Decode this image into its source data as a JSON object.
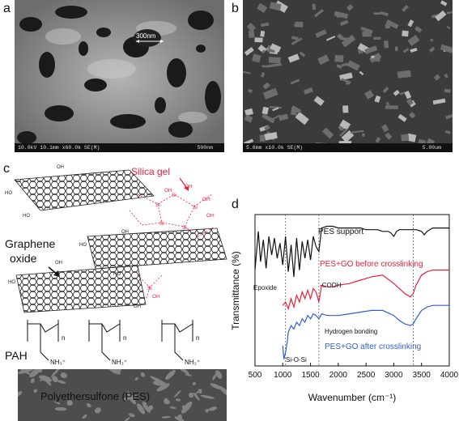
{
  "panels": {
    "a": {
      "label": "a",
      "scale_annotation": "300nm",
      "info_text": "10.0kV 10.1mm x60.0k SE(M)",
      "scale_bar": "500nm"
    },
    "b": {
      "label": "b",
      "info_text": "5.8mm x10.0k SE(M)",
      "scale_bar": "5.00um"
    },
    "c": {
      "label": "c",
      "silica_gel": "Silica gel",
      "graphene_oxide_line1": "Graphene",
      "graphene_oxide_line2": "oxide",
      "pah": "PAH",
      "pes": "Polyethersulfone (PES)",
      "n": "n",
      "nh3": "NH₃⁺",
      "si": "Si",
      "oh": "OH",
      "o": "O",
      "cooh": "OH",
      "ho": "HO"
    },
    "d": {
      "label": "d"
    }
  },
  "chart_data": {
    "type": "line",
    "xlabel": "Wavenumber (cm⁻¹)",
    "ylabel": "Transmittance (%)",
    "xlim": [
      500,
      4000
    ],
    "xticks": [
      500,
      1000,
      1500,
      2000,
      2500,
      3000,
      3500,
      4000
    ],
    "series": [
      {
        "name": "PES support",
        "color": "#111111",
        "x": [
          500,
          560,
          600,
          650,
          700,
          750,
          800,
          850,
          900,
          950,
          1000,
          1050,
          1100,
          1150,
          1200,
          1250,
          1300,
          1350,
          1400,
          1450,
          1500,
          1550,
          1600,
          1650,
          1700,
          1800,
          1900,
          2000,
          2100,
          2200,
          2300,
          2400,
          2500,
          2600,
          2700,
          2800,
          2900,
          2950,
          3000,
          3050,
          3100,
          3200,
          3300,
          3400,
          3500,
          3550,
          3600,
          3650,
          3700,
          3800,
          3900,
          4000
        ],
        "y": [
          57,
          80,
          62,
          75,
          58,
          77,
          66,
          76,
          64,
          73,
          60,
          77,
          56,
          72,
          53,
          76,
          57,
          74,
          64,
          75,
          63,
          77,
          71,
          68,
          82,
          83,
          83,
          82,
          82,
          82,
          82,
          82,
          81,
          81,
          81,
          80,
          80,
          79,
          77,
          80,
          81,
          81,
          81,
          81,
          80,
          78,
          80,
          81,
          82,
          82,
          82,
          82
        ]
      },
      {
        "name": "PES+GO before crosslinking",
        "color": "#e8203a",
        "x": [
          1000,
          1050,
          1100,
          1150,
          1200,
          1250,
          1300,
          1350,
          1400,
          1450,
          1500,
          1550,
          1600,
          1650,
          1700,
          1800,
          1900,
          2000,
          2200,
          2400,
          2600,
          2800,
          3000,
          3100,
          3200,
          3300,
          3350,
          3400,
          3500,
          3600,
          3700,
          3800,
          3900,
          4000
        ],
        "y": [
          36,
          38,
          34,
          40,
          35,
          42,
          38,
          44,
          40,
          45,
          40,
          46,
          44,
          38,
          48,
          47,
          47,
          48,
          49,
          51,
          53,
          54,
          49,
          46,
          43,
          41,
          43,
          48,
          54,
          56,
          57,
          57,
          57,
          57
        ]
      },
      {
        "name": "PES+GO after crosslinking",
        "color": "#2f5fd0",
        "x": [
          1000,
          1020,
          1050,
          1080,
          1100,
          1150,
          1200,
          1250,
          1300,
          1350,
          1400,
          1450,
          1500,
          1550,
          1600,
          1650,
          1700,
          1800,
          1900,
          2000,
          2200,
          2400,
          2600,
          2800,
          3000,
          3100,
          3200,
          3300,
          3350,
          3400,
          3500,
          3600,
          3700,
          3800,
          3900,
          4000
        ],
        "y": [
          12,
          4,
          8,
          14,
          20,
          24,
          22,
          26,
          24,
          28,
          26,
          30,
          28,
          31,
          30,
          28,
          31,
          30,
          30,
          30,
          31,
          32,
          33,
          33,
          30,
          27,
          25,
          24,
          25,
          28,
          33,
          35,
          36,
          36,
          36,
          36
        ]
      }
    ],
    "annotations": [
      {
        "text": "PES support",
        "color": "#111111"
      },
      {
        "text": "PES+GO before crosslinking",
        "color": "#e8203a"
      },
      {
        "text": "Epoxide",
        "color": "#111111"
      },
      {
        "text": "-COOH",
        "color": "#111111"
      },
      {
        "text": "Hydrogen bonding",
        "color": "#111111"
      },
      {
        "text": "PES+GO after crosslinking",
        "color": "#2f5fd0"
      },
      {
        "text": "Si-O-Si",
        "color": "#111111"
      }
    ],
    "dashed_lines_at": [
      1050,
      1650,
      3350
    ]
  }
}
